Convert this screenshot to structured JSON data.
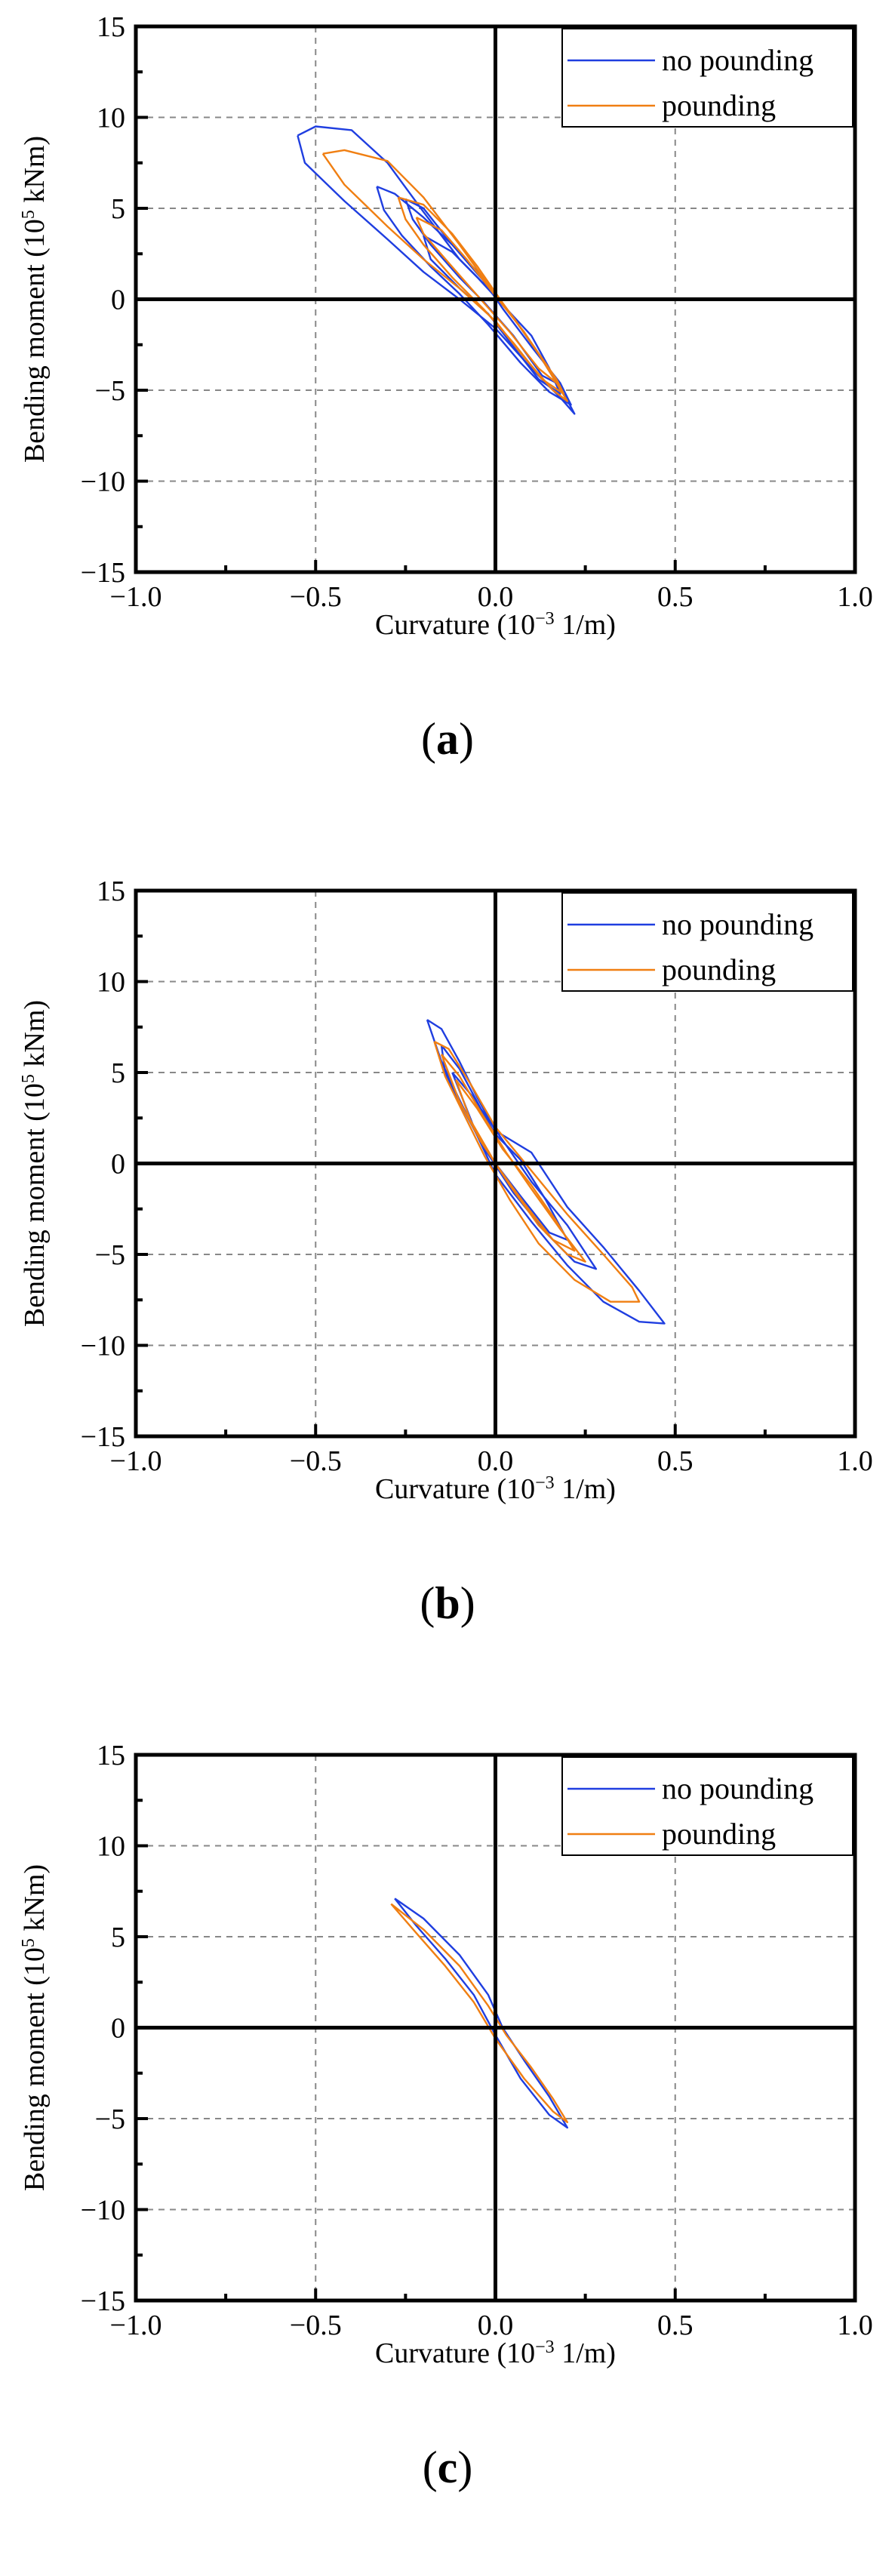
{
  "colors": {
    "no_pounding": "#1f3ee0",
    "pounding": "#f07f12",
    "axis": "#000000",
    "grid": "#888888"
  },
  "chart_data": [
    {
      "type": "line",
      "panel_label": "a",
      "xlabel": "Curvature (10",
      "xlabel_exp": "−3",
      "xlabel_tail": " 1/m)",
      "ylabel": "Bending moment (10",
      "ylabel_exp": "5",
      "ylabel_tail": " kNm)",
      "xlim": [
        -1.0,
        1.0
      ],
      "ylim": [
        -15,
        15
      ],
      "xticks": [
        -1.0,
        -0.5,
        0.0,
        0.5,
        1.0
      ],
      "xtick_labels": [
        "−1.0",
        "−0.5",
        "0.0",
        "0.5",
        "1.0"
      ],
      "yticks": [
        -15,
        -10,
        -5,
        0,
        5,
        10,
        15
      ],
      "ytick_labels": [
        "−15",
        "−10",
        "−5",
        "0",
        "5",
        "10",
        "15"
      ],
      "legend": [
        "no pounding",
        "pounding"
      ],
      "series": [
        {
          "name": "no pounding",
          "points": [
            [
              -0.55,
              9.0
            ],
            [
              -0.5,
              9.5
            ],
            [
              -0.4,
              9.3
            ],
            [
              -0.3,
              7.5
            ],
            [
              -0.2,
              4.8
            ],
            [
              -0.1,
              2.2
            ],
            [
              -0.02,
              0.6
            ],
            [
              0.05,
              -1.0
            ],
            [
              0.12,
              -3.0
            ],
            [
              0.18,
              -4.8
            ],
            [
              0.22,
              -6.3
            ],
            [
              0.18,
              -5.4
            ],
            [
              0.1,
              -3.8
            ],
            [
              0.0,
              -1.6
            ],
            [
              -0.1,
              0.0
            ],
            [
              -0.2,
              1.5
            ],
            [
              -0.3,
              3.3
            ],
            [
              -0.42,
              5.4
            ],
            [
              -0.53,
              7.5
            ],
            [
              -0.55,
              9.0
            ]
          ]
        },
        {
          "name": "no pounding",
          "points": [
            [
              -0.33,
              6.2
            ],
            [
              -0.28,
              5.8
            ],
            [
              -0.2,
              4.5
            ],
            [
              -0.12,
              3.0
            ],
            [
              -0.05,
              1.5
            ],
            [
              0.02,
              -0.5
            ],
            [
              0.1,
              -2.6
            ],
            [
              0.18,
              -4.6
            ],
            [
              0.21,
              -5.8
            ],
            [
              0.15,
              -5.1
            ],
            [
              0.07,
              -3.5
            ],
            [
              -0.02,
              -1.4
            ],
            [
              -0.1,
              0.3
            ],
            [
              -0.18,
              1.8
            ],
            [
              -0.26,
              3.5
            ],
            [
              -0.31,
              4.9
            ],
            [
              -0.33,
              6.2
            ]
          ]
        },
        {
          "name": "no pounding",
          "points": [
            [
              -0.25,
              5.5
            ],
            [
              -0.2,
              5.0
            ],
            [
              -0.12,
              3.0
            ],
            [
              -0.05,
              1.4
            ],
            [
              0.0,
              0.3
            ],
            [
              0.05,
              -1.0
            ],
            [
              0.12,
              -3.0
            ],
            [
              0.17,
              -4.6
            ],
            [
              0.13,
              -4.2
            ],
            [
              0.05,
              -2.0
            ],
            [
              -0.03,
              -0.2
            ],
            [
              -0.1,
              1.2
            ],
            [
              -0.18,
              3.0
            ],
            [
              -0.23,
              4.4
            ],
            [
              -0.25,
              5.5
            ]
          ]
        },
        {
          "name": "no pounding",
          "points": [
            [
              -0.2,
              3.5
            ],
            [
              -0.12,
              2.6
            ],
            [
              -0.05,
              1.2
            ],
            [
              0.02,
              -0.3
            ],
            [
              0.1,
              -2.0
            ],
            [
              0.15,
              -3.8
            ],
            [
              0.18,
              -5.2
            ],
            [
              0.12,
              -4.4
            ],
            [
              0.05,
              -2.6
            ],
            [
              -0.02,
              -0.8
            ],
            [
              -0.1,
              0.6
            ],
            [
              -0.18,
              2.2
            ],
            [
              -0.2,
              3.5
            ]
          ]
        },
        {
          "name": "pounding",
          "points": [
            [
              -0.48,
              8.0
            ],
            [
              -0.42,
              8.2
            ],
            [
              -0.3,
              7.6
            ],
            [
              -0.2,
              5.6
            ],
            [
              -0.1,
              3.0
            ],
            [
              -0.02,
              0.8
            ],
            [
              0.05,
              -1.0
            ],
            [
              0.12,
              -3.0
            ],
            [
              0.17,
              -4.6
            ],
            [
              0.2,
              -5.6
            ],
            [
              0.16,
              -5.0
            ],
            [
              0.08,
              -3.2
            ],
            [
              0.0,
              -1.2
            ],
            [
              -0.1,
              0.6
            ],
            [
              -0.2,
              2.2
            ],
            [
              -0.3,
              4.0
            ],
            [
              -0.42,
              6.3
            ],
            [
              -0.48,
              8.0
            ]
          ]
        },
        {
          "name": "pounding",
          "points": [
            [
              -0.27,
              5.6
            ],
            [
              -0.2,
              5.2
            ],
            [
              -0.12,
              3.6
            ],
            [
              -0.05,
              1.8
            ],
            [
              0.02,
              -0.2
            ],
            [
              0.1,
              -2.4
            ],
            [
              0.17,
              -4.4
            ],
            [
              0.19,
              -5.2
            ],
            [
              0.13,
              -4.4
            ],
            [
              0.05,
              -2.4
            ],
            [
              -0.03,
              -0.6
            ],
            [
              -0.12,
              1.2
            ],
            [
              -0.2,
              3.0
            ],
            [
              -0.25,
              4.4
            ],
            [
              -0.27,
              5.6
            ]
          ]
        },
        {
          "name": "pounding",
          "points": [
            [
              -0.22,
              4.5
            ],
            [
              -0.15,
              3.8
            ],
            [
              -0.08,
              2.2
            ],
            [
              0.0,
              0.2
            ],
            [
              0.08,
              -1.8
            ],
            [
              0.14,
              -3.6
            ],
            [
              0.17,
              -4.6
            ],
            [
              0.12,
              -3.8
            ],
            [
              0.04,
              -1.8
            ],
            [
              -0.05,
              0.2
            ],
            [
              -0.13,
              2.0
            ],
            [
              -0.2,
              3.6
            ],
            [
              -0.22,
              4.5
            ]
          ]
        }
      ]
    },
    {
      "type": "line",
      "panel_label": "b",
      "xlabel": "Curvature (10",
      "xlabel_exp": "−3",
      "xlabel_tail": " 1/m)",
      "ylabel": "Bending moment (10",
      "ylabel_exp": "5",
      "ylabel_tail": " kNm)",
      "xlim": [
        -1.0,
        1.0
      ],
      "ylim": [
        -15,
        15
      ],
      "xticks": [
        -1.0,
        -0.5,
        0.0,
        0.5,
        1.0
      ],
      "xtick_labels": [
        "−1.0",
        "−0.5",
        "0.0",
        "0.5",
        "1.0"
      ],
      "yticks": [
        -15,
        -10,
        -5,
        0,
        5,
        10,
        15
      ],
      "ytick_labels": [
        "−15",
        "−10",
        "−5",
        "0",
        "5",
        "10",
        "15"
      ],
      "legend": [
        "no pounding",
        "pounding"
      ],
      "series": [
        {
          "name": "no pounding",
          "points": [
            [
              -0.19,
              7.9
            ],
            [
              -0.15,
              7.4
            ],
            [
              -0.1,
              5.6
            ],
            [
              -0.05,
              3.6
            ],
            [
              0.0,
              1.8
            ],
            [
              0.1,
              0.6
            ],
            [
              0.2,
              -2.4
            ],
            [
              0.3,
              -4.6
            ],
            [
              0.4,
              -7.0
            ],
            [
              0.47,
              -8.8
            ],
            [
              0.4,
              -8.7
            ],
            [
              0.3,
              -7.6
            ],
            [
              0.2,
              -5.6
            ],
            [
              0.1,
              -3.2
            ],
            [
              0.0,
              -0.6
            ],
            [
              -0.05,
              1.5
            ],
            [
              -0.1,
              3.5
            ],
            [
              -0.15,
              5.6
            ],
            [
              -0.19,
              7.9
            ]
          ]
        },
        {
          "name": "no pounding",
          "points": [
            [
              -0.15,
              6.5
            ],
            [
              -0.1,
              5.2
            ],
            [
              -0.04,
              3.0
            ],
            [
              0.03,
              1.0
            ],
            [
              0.1,
              -1.0
            ],
            [
              0.2,
              -3.4
            ],
            [
              0.28,
              -5.8
            ],
            [
              0.22,
              -5.4
            ],
            [
              0.14,
              -3.8
            ],
            [
              0.05,
              -1.6
            ],
            [
              -0.03,
              0.8
            ],
            [
              -0.09,
              3.0
            ],
            [
              -0.14,
              5.0
            ],
            [
              -0.15,
              6.5
            ]
          ]
        },
        {
          "name": "no pounding",
          "points": [
            [
              -0.12,
              5.0
            ],
            [
              -0.06,
              3.6
            ],
            [
              0.0,
              1.6
            ],
            [
              0.07,
              0.2
            ],
            [
              0.14,
              -2.0
            ],
            [
              0.2,
              -4.2
            ],
            [
              0.15,
              -3.8
            ],
            [
              0.07,
              -1.8
            ],
            [
              0.0,
              0.0
            ],
            [
              -0.06,
              2.0
            ],
            [
              -0.12,
              5.0
            ]
          ]
        },
        {
          "name": "pounding",
          "points": [
            [
              -0.17,
              6.7
            ],
            [
              -0.13,
              6.3
            ],
            [
              -0.07,
              4.4
            ],
            [
              0.0,
              2.0
            ],
            [
              0.1,
              -0.4
            ],
            [
              0.2,
              -2.8
            ],
            [
              0.3,
              -5.0
            ],
            [
              0.38,
              -6.8
            ],
            [
              0.4,
              -7.6
            ],
            [
              0.32,
              -7.6
            ],
            [
              0.22,
              -6.4
            ],
            [
              0.12,
              -4.4
            ],
            [
              0.04,
              -2.0
            ],
            [
              -0.03,
              0.4
            ],
            [
              -0.09,
              2.8
            ],
            [
              -0.14,
              4.8
            ],
            [
              -0.17,
              6.7
            ]
          ]
        },
        {
          "name": "pounding",
          "points": [
            [
              -0.15,
              6.0
            ],
            [
              -0.1,
              4.8
            ],
            [
              -0.04,
              2.8
            ],
            [
              0.03,
              0.6
            ],
            [
              0.1,
              -1.4
            ],
            [
              0.18,
              -3.6
            ],
            [
              0.25,
              -5.4
            ],
            [
              0.2,
              -5.0
            ],
            [
              0.12,
              -3.4
            ],
            [
              0.04,
              -1.2
            ],
            [
              -0.04,
              1.2
            ],
            [
              -0.1,
              3.4
            ],
            [
              -0.15,
              6.0
            ]
          ]
        },
        {
          "name": "pounding",
          "points": [
            [
              -0.11,
              4.6
            ],
            [
              -0.05,
              3.0
            ],
            [
              0.02,
              0.8
            ],
            [
              0.1,
              -1.2
            ],
            [
              0.17,
              -3.2
            ],
            [
              0.22,
              -4.8
            ],
            [
              0.16,
              -4.2
            ],
            [
              0.08,
              -2.2
            ],
            [
              0.0,
              0.0
            ],
            [
              -0.07,
              2.4
            ],
            [
              -0.11,
              4.6
            ]
          ]
        }
      ]
    },
    {
      "type": "line",
      "panel_label": "c",
      "xlabel": "Curvature (10",
      "xlabel_exp": "−3",
      "xlabel_tail": " 1/m)",
      "ylabel": "Bending moment (10",
      "ylabel_exp": "5",
      "ylabel_tail": " kNm)",
      "xlim": [
        -1.0,
        1.0
      ],
      "ylim": [
        -15,
        15
      ],
      "xticks": [
        -1.0,
        -0.5,
        0.0,
        0.5,
        1.0
      ],
      "xtick_labels": [
        "−1.0",
        "−0.5",
        "0.0",
        "0.5",
        "1.0"
      ],
      "yticks": [
        -15,
        -10,
        -5,
        0,
        5,
        10,
        15
      ],
      "ytick_labels": [
        "−15",
        "−10",
        "−5",
        "0",
        "5",
        "10",
        "15"
      ],
      "legend": [
        "no pounding",
        "pounding"
      ],
      "series": [
        {
          "name": "no pounding",
          "points": [
            [
              -0.28,
              7.1
            ],
            [
              -0.2,
              6.0
            ],
            [
              -0.1,
              4.0
            ],
            [
              -0.02,
              1.8
            ],
            [
              0.02,
              0.0
            ],
            [
              0.08,
              -1.8
            ],
            [
              0.15,
              -3.8
            ],
            [
              0.2,
              -5.5
            ],
            [
              0.15,
              -4.8
            ],
            [
              0.07,
              -2.8
            ],
            [
              0.0,
              -0.4
            ],
            [
              -0.06,
              1.8
            ],
            [
              -0.14,
              3.8
            ],
            [
              -0.22,
              5.6
            ],
            [
              -0.28,
              7.1
            ]
          ]
        },
        {
          "name": "pounding",
          "points": [
            [
              -0.29,
              6.8
            ],
            [
              -0.2,
              5.4
            ],
            [
              -0.1,
              3.4
            ],
            [
              -0.02,
              1.2
            ],
            [
              0.03,
              -0.4
            ],
            [
              0.1,
              -2.2
            ],
            [
              0.16,
              -3.9
            ],
            [
              0.2,
              -5.2
            ],
            [
              0.16,
              -4.6
            ],
            [
              0.08,
              -2.8
            ],
            [
              0.0,
              -0.6
            ],
            [
              -0.06,
              1.4
            ],
            [
              -0.14,
              3.4
            ],
            [
              -0.22,
              5.2
            ],
            [
              -0.29,
              6.8
            ]
          ]
        }
      ]
    }
  ]
}
